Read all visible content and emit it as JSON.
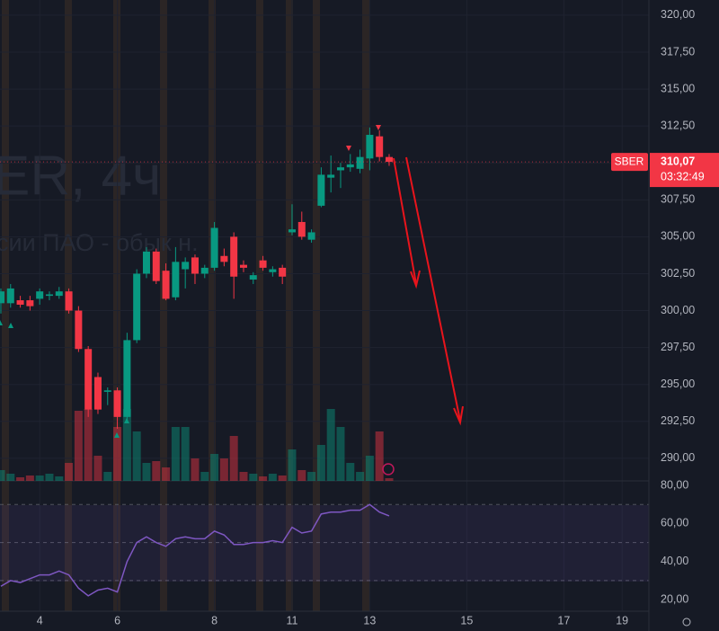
{
  "chart_data": [
    {
      "type": "candlestick",
      "symbol": "SBER",
      "watermark_title": "ER, 4ч",
      "watermark_subtitle": "сии ПАО - обык н.",
      "up_color": "#089981",
      "down_color": "#f23645",
      "x": [
        0,
        1,
        2,
        3,
        4,
        5,
        6,
        7,
        8,
        9,
        10,
        11,
        12,
        13,
        14,
        15,
        16,
        17,
        18,
        19,
        20,
        21,
        22,
        23,
        24,
        25,
        26,
        27,
        28,
        29,
        30,
        31,
        32,
        33,
        34,
        35,
        36,
        37,
        38,
        39,
        40
      ],
      "open": [
        300.5,
        300.5,
        300.7,
        300.7,
        300.8,
        301.0,
        301.0,
        301.3,
        300.0,
        297.4,
        295.5,
        294.5,
        294.6,
        292.8,
        298.0,
        302.5,
        304.0,
        302.7,
        300.9,
        302.8,
        303.6,
        302.5,
        302.9,
        303.7,
        305.0,
        303.1,
        302.1,
        303.4,
        302.6,
        302.9,
        305.3,
        306.0,
        304.8,
        307.1,
        309.0,
        309.5,
        309.7,
        309.6,
        310.3,
        311.8,
        310.4
      ],
      "high": [
        301.5,
        301.8,
        301.0,
        301.0,
        301.5,
        301.3,
        301.6,
        301.5,
        300.3,
        297.6,
        295.8,
        294.8,
        294.8,
        298.5,
        302.8,
        304.3,
        304.2,
        303.2,
        304.3,
        303.6,
        303.8,
        303.1,
        306.0,
        304.2,
        305.3,
        303.4,
        302.6,
        303.7,
        303.0,
        303.1,
        307.2,
        306.7,
        305.5,
        309.7,
        310.5,
        310.0,
        310.6,
        310.9,
        312.4,
        312.2,
        310.6
      ],
      "low": [
        299.8,
        300.2,
        300.2,
        300.0,
        300.4,
        300.7,
        300.8,
        299.8,
        297.2,
        292.8,
        293.0,
        293.6,
        292.0,
        292.6,
        297.8,
        302.2,
        301.8,
        300.7,
        300.7,
        301.5,
        301.8,
        302.2,
        302.7,
        303.0,
        300.8,
        302.6,
        301.8,
        302.7,
        302.3,
        301.8,
        305.1,
        304.8,
        304.6,
        307.0,
        308.0,
        308.3,
        309.4,
        309.3,
        309.5,
        310.1,
        309.8
      ],
      "close": [
        301.3,
        301.5,
        300.4,
        300.3,
        301.3,
        301.1,
        301.3,
        300.0,
        297.4,
        293.3,
        293.3,
        294.6,
        292.8,
        298.0,
        302.5,
        304.0,
        302.0,
        300.8,
        303.3,
        303.3,
        302.5,
        302.9,
        305.6,
        303.3,
        302.3,
        302.9,
        302.4,
        302.9,
        302.8,
        302.3,
        305.5,
        305.0,
        305.3,
        309.2,
        309.2,
        309.7,
        309.9,
        310.4,
        311.9,
        310.4,
        310.07
      ],
      "volume": [
        12,
        8,
        4,
        6,
        6,
        8,
        5,
        20,
        78,
        80,
        28,
        10,
        60,
        80,
        55,
        20,
        22,
        15,
        60,
        60,
        25,
        10,
        30,
        25,
        50,
        10,
        8,
        5,
        8,
        6,
        35,
        12,
        10,
        40,
        80,
        60,
        20,
        10,
        28,
        55,
        3
      ],
      "xlim": [
        -0.09,
        66.76
      ],
      "xticks": [
        {
          "value": 4,
          "label": "4"
        },
        {
          "value": 12,
          "label": "6"
        },
        {
          "value": 22,
          "label": "8"
        },
        {
          "value": 30,
          "label": "11"
        },
        {
          "value": 38,
          "label": "13"
        },
        {
          "value": 48,
          "label": "15"
        },
        {
          "value": 58,
          "label": "17"
        },
        {
          "value": 64,
          "label": "19"
        }
      ],
      "ylim": [
        288.47,
        321.03
      ],
      "yticks": [
        {
          "value": 290,
          "label": "290,00"
        },
        {
          "value": 292.5,
          "label": "292,50"
        },
        {
          "value": 295,
          "label": "295,00"
        },
        {
          "value": 297.5,
          "label": "297,50"
        },
        {
          "value": 300,
          "label": "300,00"
        },
        {
          "value": 302.5,
          "label": "302,50"
        },
        {
          "value": 305,
          "label": "305,00"
        },
        {
          "value": 307.5,
          "label": "307,50"
        },
        {
          "value": 310,
          "label": "310,00"
        },
        {
          "value": 312.5,
          "label": "312,50"
        },
        {
          "value": 315,
          "label": "315,00"
        },
        {
          "value": 317.5,
          "label": "317,50"
        },
        {
          "value": 320,
          "label": "320,00"
        }
      ],
      "last_price": {
        "value": 310.07,
        "label": "310,07"
      },
      "countdown": "03:32:49"
    },
    {
      "type": "line",
      "color": "#7e57c2",
      "x": [
        0,
        1,
        2,
        3,
        4,
        5,
        6,
        7,
        8,
        9,
        10,
        11,
        12,
        13,
        14,
        15,
        16,
        17,
        18,
        19,
        20,
        21,
        22,
        23,
        24,
        25,
        26,
        27,
        28,
        29,
        30,
        31,
        32,
        33,
        34,
        35,
        36,
        37,
        38,
        39,
        40
      ],
      "values": [
        27,
        30,
        29,
        31,
        33,
        33,
        35,
        33,
        26,
        22,
        25,
        26,
        24,
        40,
        50,
        53,
        50,
        48,
        52,
        53,
        52,
        52,
        56,
        54,
        49,
        49,
        50,
        50,
        51,
        50,
        58,
        55,
        56,
        65,
        66,
        66,
        67,
        67,
        70,
        66,
        64
      ],
      "ylim": [
        13.9,
        82.4
      ],
      "yticks": [
        {
          "value": 20,
          "label": "20,00"
        },
        {
          "value": 40,
          "label": "40,00"
        },
        {
          "value": 60,
          "label": "60,00"
        },
        {
          "value": 80,
          "label": "80,00"
        }
      ],
      "levels": [
        30,
        50,
        70
      ]
    }
  ]
}
